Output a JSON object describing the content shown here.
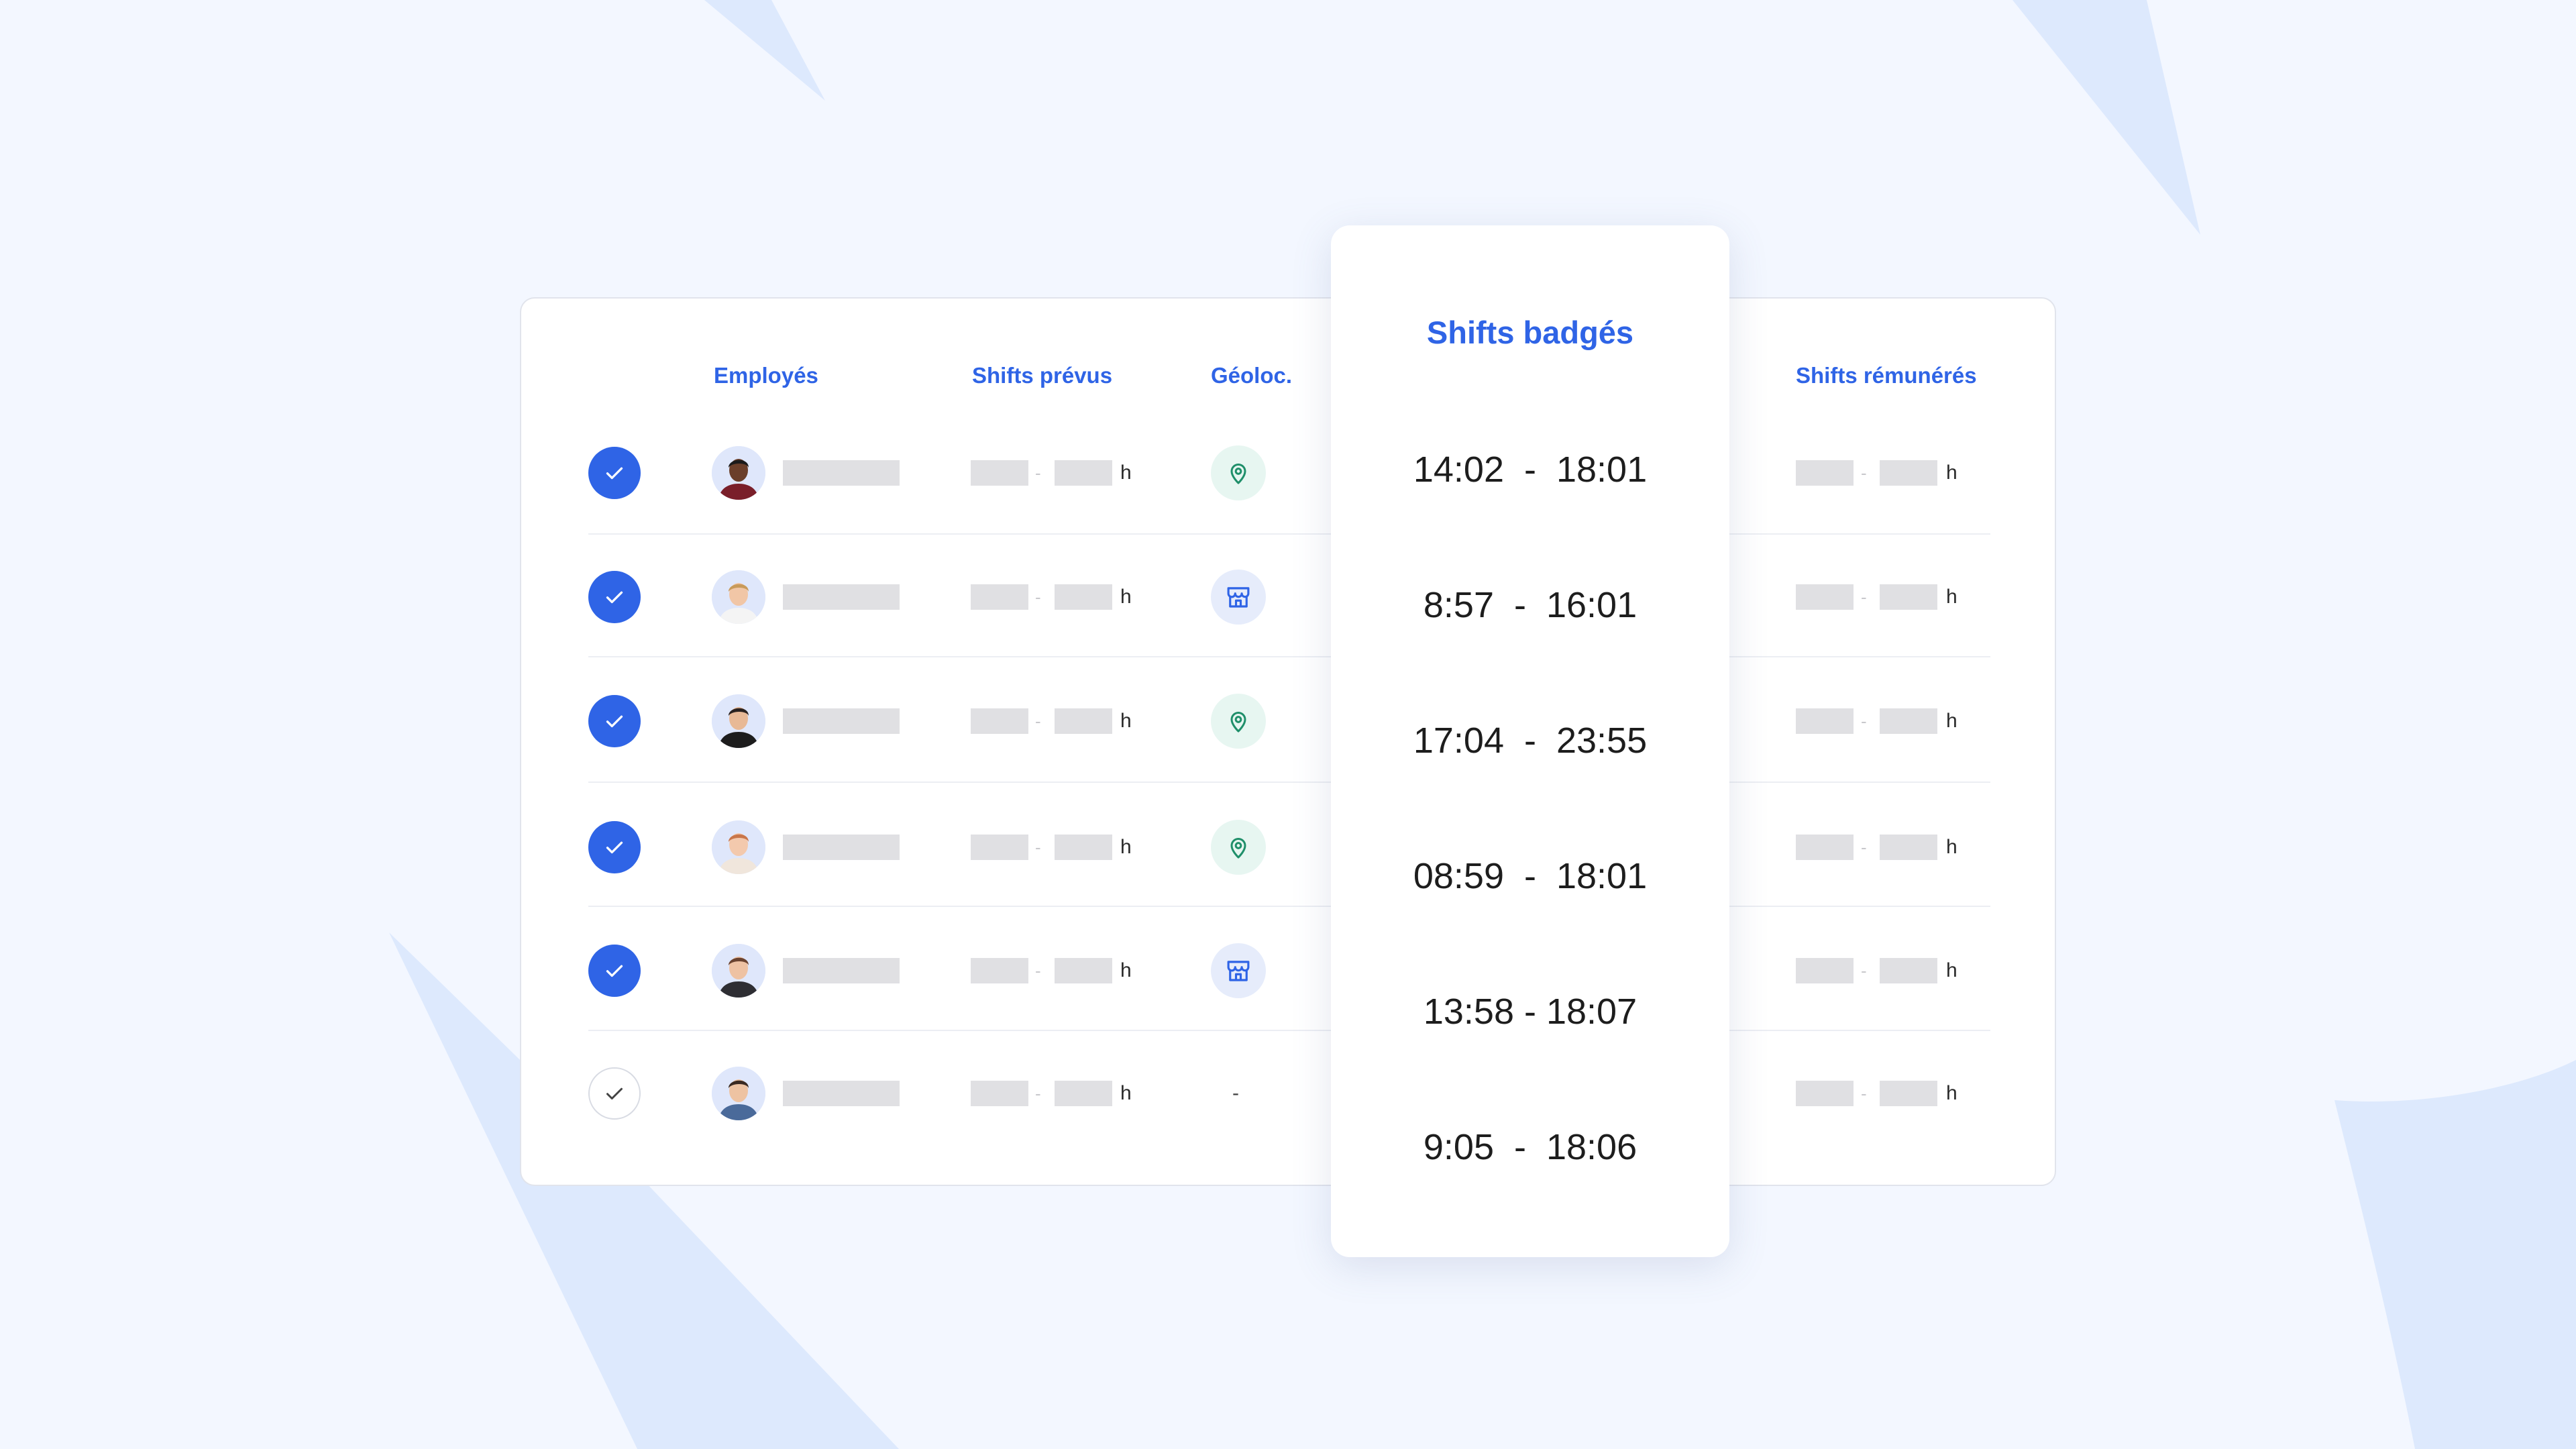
{
  "headers": {
    "employees": "Employés",
    "planned": "Shifts prévus",
    "geo": "Géoloc.",
    "badged": "Shifts badgés",
    "paid": "Shifts rémunérés"
  },
  "hour_unit": "h",
  "separator": "-",
  "rows": [
    {
      "checked": true,
      "avatar": "avatar-man-dark",
      "geo": "location-pin-icon",
      "badged": "14:02  -  18:01"
    },
    {
      "checked": true,
      "avatar": "avatar-woman-blonde",
      "geo": "store-icon",
      "badged": "8:57  -  16:01"
    },
    {
      "checked": true,
      "avatar": "avatar-man-beard",
      "geo": "location-pin-icon",
      "badged": "17:04  -  23:55"
    },
    {
      "checked": true,
      "avatar": "avatar-woman-red",
      "geo": "location-pin-icon",
      "badged": "08:59  -  18:01"
    },
    {
      "checked": true,
      "avatar": "avatar-woman-brown",
      "geo": "store-icon",
      "badged": "13:58 - 18:07"
    },
    {
      "checked": false,
      "avatar": "avatar-man-short",
      "geo": "-",
      "badged": "9:05  -  18:06"
    }
  ],
  "colors": {
    "accent": "#2f64e6",
    "background": "#f3f7ff",
    "pin": "#1f8f6a",
    "placeholder": "#e0e0e3"
  }
}
